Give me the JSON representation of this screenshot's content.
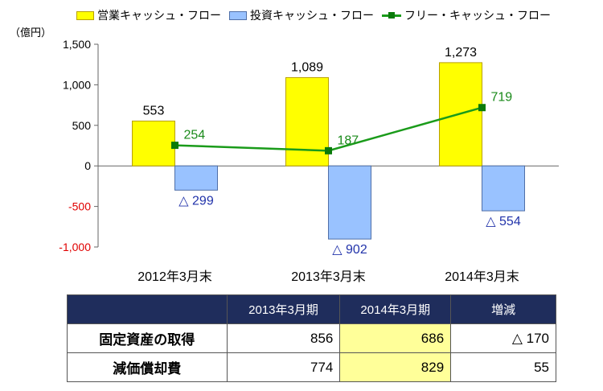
{
  "legend": {
    "operating": "営業キャッシュ・フロー",
    "investing": "投資キャッシュ・フロー",
    "free": "フリー・キャッシュ・フロー"
  },
  "unit_label": "（億円）",
  "colors": {
    "operating": "#ffff00",
    "operating_border": "#b8a000",
    "investing": "#99c2ff",
    "investing_border": "#4f6fa8",
    "free_line": "#1a9b1a",
    "free_marker": "#0a7a0a",
    "free_label": "#1a8a1a",
    "investing_label": "#2233aa",
    "negative_tick": "#e00000",
    "header_bg": "#1f2d5c",
    "highlight": "#ffff99"
  },
  "chart_data": {
    "type": "bar",
    "categories": [
      "2012年3月末",
      "2013年3月末",
      "2014年3月末"
    ],
    "series": [
      {
        "name": "営業キャッシュ・フロー",
        "type": "bar",
        "values": [
          553,
          1089,
          1273
        ],
        "labels": [
          "553",
          "1,089",
          "1,273"
        ]
      },
      {
        "name": "投資キャッシュ・フロー",
        "type": "bar",
        "values": [
          -299,
          -902,
          -554
        ],
        "labels": [
          "△ 299",
          "△ 902",
          "△ 554"
        ]
      },
      {
        "name": "フリー・キャッシュ・フロー",
        "type": "line",
        "values": [
          254,
          187,
          719
        ],
        "labels": [
          "254",
          "187",
          "719"
        ]
      }
    ],
    "ylim": [
      -1000,
      1500
    ],
    "yticks": [
      1500,
      1000,
      500,
      0,
      -500,
      -1000
    ],
    "ytick_labels": [
      "1,500",
      "1,000",
      "500",
      "0",
      "-500",
      "-1,000"
    ],
    "legend_position": "top",
    "grid": false
  },
  "table": {
    "headers": [
      "",
      "2013年3月期",
      "2014年3月期",
      "増減"
    ],
    "rows": [
      {
        "label": "固定資産の取得",
        "values": [
          "856",
          "686",
          "△ 170"
        ]
      },
      {
        "label": "減価償却費",
        "values": [
          "774",
          "829",
          "55"
        ]
      }
    ]
  }
}
